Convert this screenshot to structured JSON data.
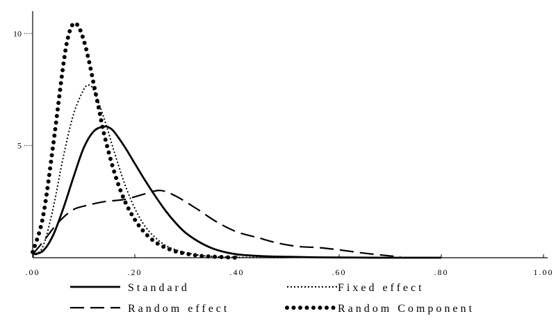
{
  "chart_data": {
    "type": "line",
    "title": "",
    "xlabel": "",
    "ylabel": "",
    "xlim": [
      0,
      1
    ],
    "ylim": [
      0,
      11
    ],
    "grid": false,
    "legend_position": "bottom",
    "x_ticks": [
      {
        "value": 0.0,
        "label": ".00"
      },
      {
        "value": 0.2,
        "label": ".20"
      },
      {
        "value": 0.4,
        "label": ".40"
      },
      {
        "value": 0.6,
        "label": ".60"
      },
      {
        "value": 0.8,
        "label": ".80"
      },
      {
        "value": 1.0,
        "label": "1.00"
      }
    ],
    "y_ticks": [
      {
        "value": 5,
        "label": "5"
      },
      {
        "value": 10,
        "label": "10"
      }
    ],
    "series": [
      {
        "name": "Standard",
        "style": "solid",
        "color": "#000000",
        "x": [
          0.0,
          0.02,
          0.04,
          0.06,
          0.08,
          0.1,
          0.12,
          0.14,
          0.15,
          0.16,
          0.18,
          0.2,
          0.22,
          0.24,
          0.26,
          0.28,
          0.3,
          0.33,
          0.36,
          0.4,
          0.45,
          0.5,
          0.55,
          0.6,
          0.7,
          0.8
        ],
        "y": [
          0.15,
          0.3,
          1.0,
          2.2,
          3.6,
          4.9,
          5.65,
          5.85,
          5.8,
          5.6,
          4.95,
          4.2,
          3.45,
          2.75,
          2.1,
          1.55,
          1.1,
          0.65,
          0.35,
          0.15,
          0.07,
          0.04,
          0.02,
          0.01,
          0.0,
          0.0
        ]
      },
      {
        "name": "Fixed effect",
        "style": "dotted",
        "color": "#000000",
        "x": [
          0.0,
          0.02,
          0.04,
          0.06,
          0.08,
          0.1,
          0.11,
          0.12,
          0.14,
          0.16,
          0.18,
          0.2,
          0.22,
          0.24,
          0.26,
          0.28,
          0.3,
          0.33,
          0.36,
          0.4,
          0.45,
          0.5
        ],
        "y": [
          0.05,
          0.5,
          2.2,
          4.5,
          6.4,
          7.5,
          7.7,
          7.45,
          6.2,
          4.7,
          3.3,
          2.2,
          1.4,
          0.9,
          0.55,
          0.35,
          0.22,
          0.1,
          0.05,
          0.02,
          0.01,
          0.0
        ]
      },
      {
        "name": "Random effect",
        "style": "dashed",
        "color": "#000000",
        "x": [
          0.0,
          0.02,
          0.04,
          0.06,
          0.08,
          0.1,
          0.14,
          0.18,
          0.22,
          0.25,
          0.28,
          0.32,
          0.36,
          0.4,
          0.44,
          0.48,
          0.52,
          0.56,
          0.6,
          0.65,
          0.7,
          0.72
        ],
        "y": [
          0.15,
          0.7,
          1.3,
          1.8,
          2.15,
          2.3,
          2.5,
          2.6,
          2.85,
          3.0,
          2.75,
          2.2,
          1.6,
          1.15,
          0.9,
          0.65,
          0.5,
          0.45,
          0.35,
          0.2,
          0.08,
          0.05
        ]
      },
      {
        "name": "Random Component",
        "style": "dots",
        "color": "#000000",
        "x": [
          0.0,
          0.02,
          0.04,
          0.06,
          0.07,
          0.08,
          0.09,
          0.1,
          0.11,
          0.12,
          0.13,
          0.14,
          0.16,
          0.18,
          0.2,
          0.22,
          0.24,
          0.26,
          0.28,
          0.3,
          0.33,
          0.36,
          0.4
        ],
        "y": [
          0.25,
          1.8,
          5.0,
          8.6,
          9.9,
          10.45,
          10.3,
          9.7,
          8.8,
          7.7,
          6.6,
          5.5,
          3.8,
          2.55,
          1.7,
          1.1,
          0.7,
          0.45,
          0.28,
          0.18,
          0.08,
          0.04,
          0.0
        ]
      }
    ]
  }
}
